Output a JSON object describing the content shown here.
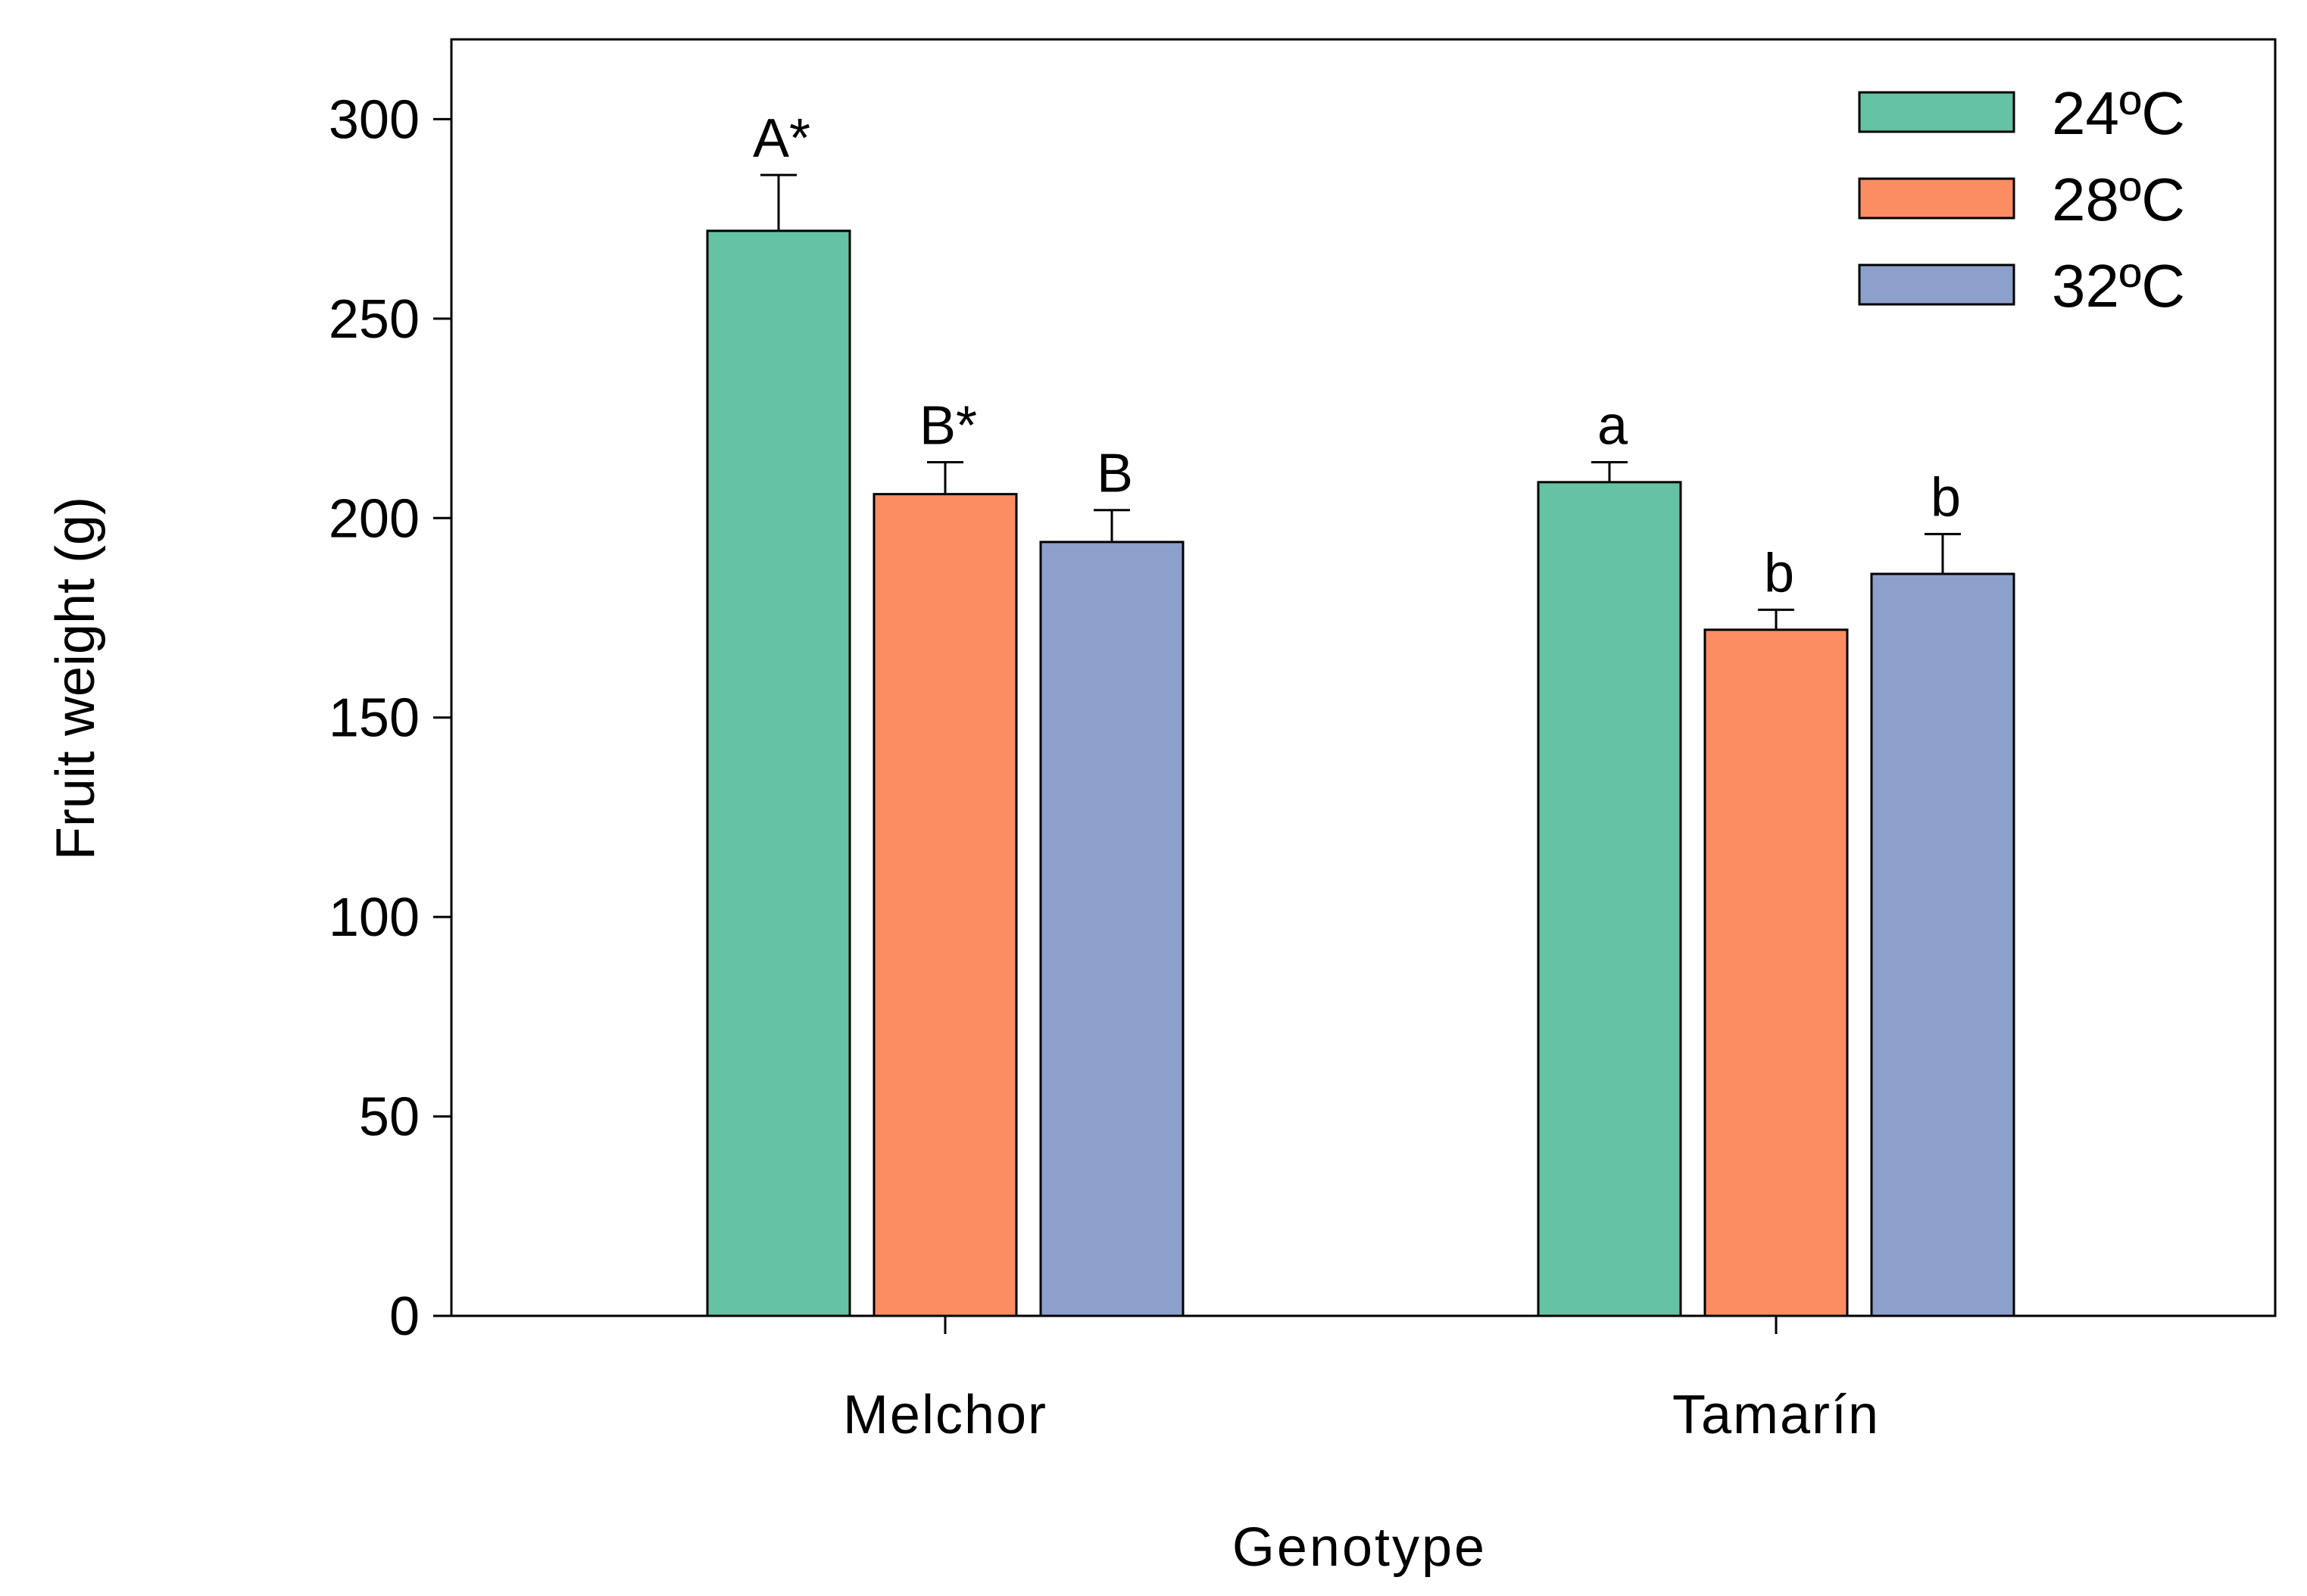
{
  "chart_data": {
    "type": "bar",
    "title": "",
    "xlabel": "Genotype",
    "ylabel": "Fruit weight (g)",
    "ylim": [
      0,
      320
    ],
    "yticks": [
      0,
      50,
      100,
      150,
      200,
      250,
      300
    ],
    "categories": [
      "Melchor",
      "Tamarín"
    ],
    "grid": false,
    "legend_position": "top-right",
    "series": [
      {
        "name": "24ºC",
        "color": "#66c2a5",
        "values": [
          272,
          209
        ],
        "errors": [
          14,
          5
        ],
        "labels": [
          "A*",
          "a"
        ]
      },
      {
        "name": "28ºC",
        "color": "#fc8d62",
        "values": [
          206,
          172
        ],
        "errors": [
          8,
          5
        ],
        "labels": [
          "B*",
          "b"
        ]
      },
      {
        "name": "32ºC",
        "color": "#8da0cb",
        "values": [
          194,
          186
        ],
        "errors": [
          8,
          10
        ],
        "labels": [
          "B",
          "b"
        ]
      }
    ]
  }
}
